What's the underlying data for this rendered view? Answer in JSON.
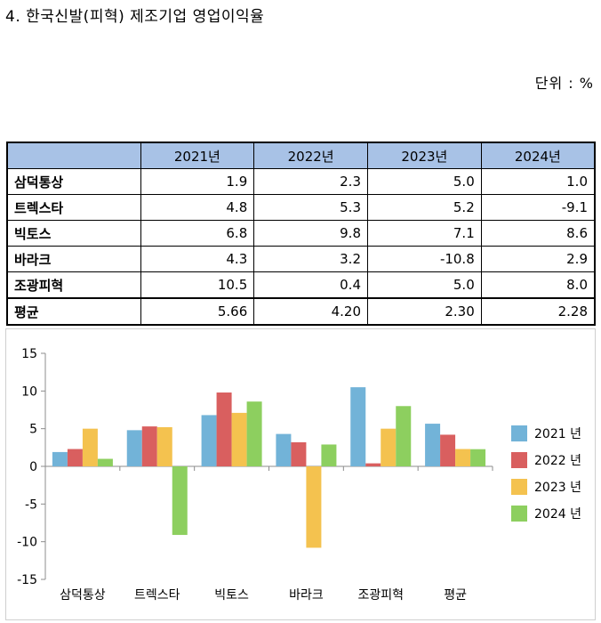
{
  "title": "4. 한국신발(피혁) 제조기업 영업이익율",
  "unit_label": "단위 : %",
  "table": {
    "header": [
      "",
      "2021년",
      "2022년",
      "2023년",
      "2024년"
    ],
    "rows": [
      {
        "label": "삼덕통상",
        "values": [
          "1.9",
          "2.3",
          "5.0",
          "1.0"
        ]
      },
      {
        "label": "트렉스타",
        "values": [
          "4.8",
          "5.3",
          "5.2",
          "-9.1"
        ]
      },
      {
        "label": "빅토스",
        "values": [
          "6.8",
          "9.8",
          "7.1",
          "8.6"
        ]
      },
      {
        "label": "바라크",
        "values": [
          "4.3",
          "3.2",
          "-10.8",
          "2.9"
        ]
      },
      {
        "label": "조광피혁",
        "values": [
          "10.5",
          "0.4",
          "5.0",
          "8.0"
        ]
      },
      {
        "label": "평균",
        "values": [
          "5.66",
          "4.20",
          "2.30",
          "2.28"
        ]
      }
    ]
  },
  "chart_data": {
    "type": "bar",
    "categories": [
      "삼덕통상",
      "트렉스타",
      "빅토스",
      "바라크",
      "조광피혁",
      "평균"
    ],
    "series": [
      {
        "name": "2021 년",
        "color": "#72b3d8",
        "values": [
          1.9,
          4.8,
          6.8,
          4.3,
          10.5,
          5.66
        ]
      },
      {
        "name": "2022 년",
        "color": "#d95f5f",
        "values": [
          2.3,
          5.3,
          9.8,
          3.2,
          0.4,
          4.2
        ]
      },
      {
        "name": "2023 년",
        "color": "#f4c24f",
        "values": [
          5.0,
          5.2,
          7.1,
          -10.8,
          5.0,
          2.3
        ]
      },
      {
        "name": "2024 년",
        "color": "#8dcf5f",
        "values": [
          1.0,
          -9.1,
          8.6,
          2.9,
          8.0,
          2.28
        ]
      }
    ],
    "yticks": [
      15,
      10,
      5,
      0,
      -5,
      -10,
      -15
    ],
    "ylim": [
      -15,
      15
    ],
    "grid": false,
    "legend_position": "right"
  }
}
